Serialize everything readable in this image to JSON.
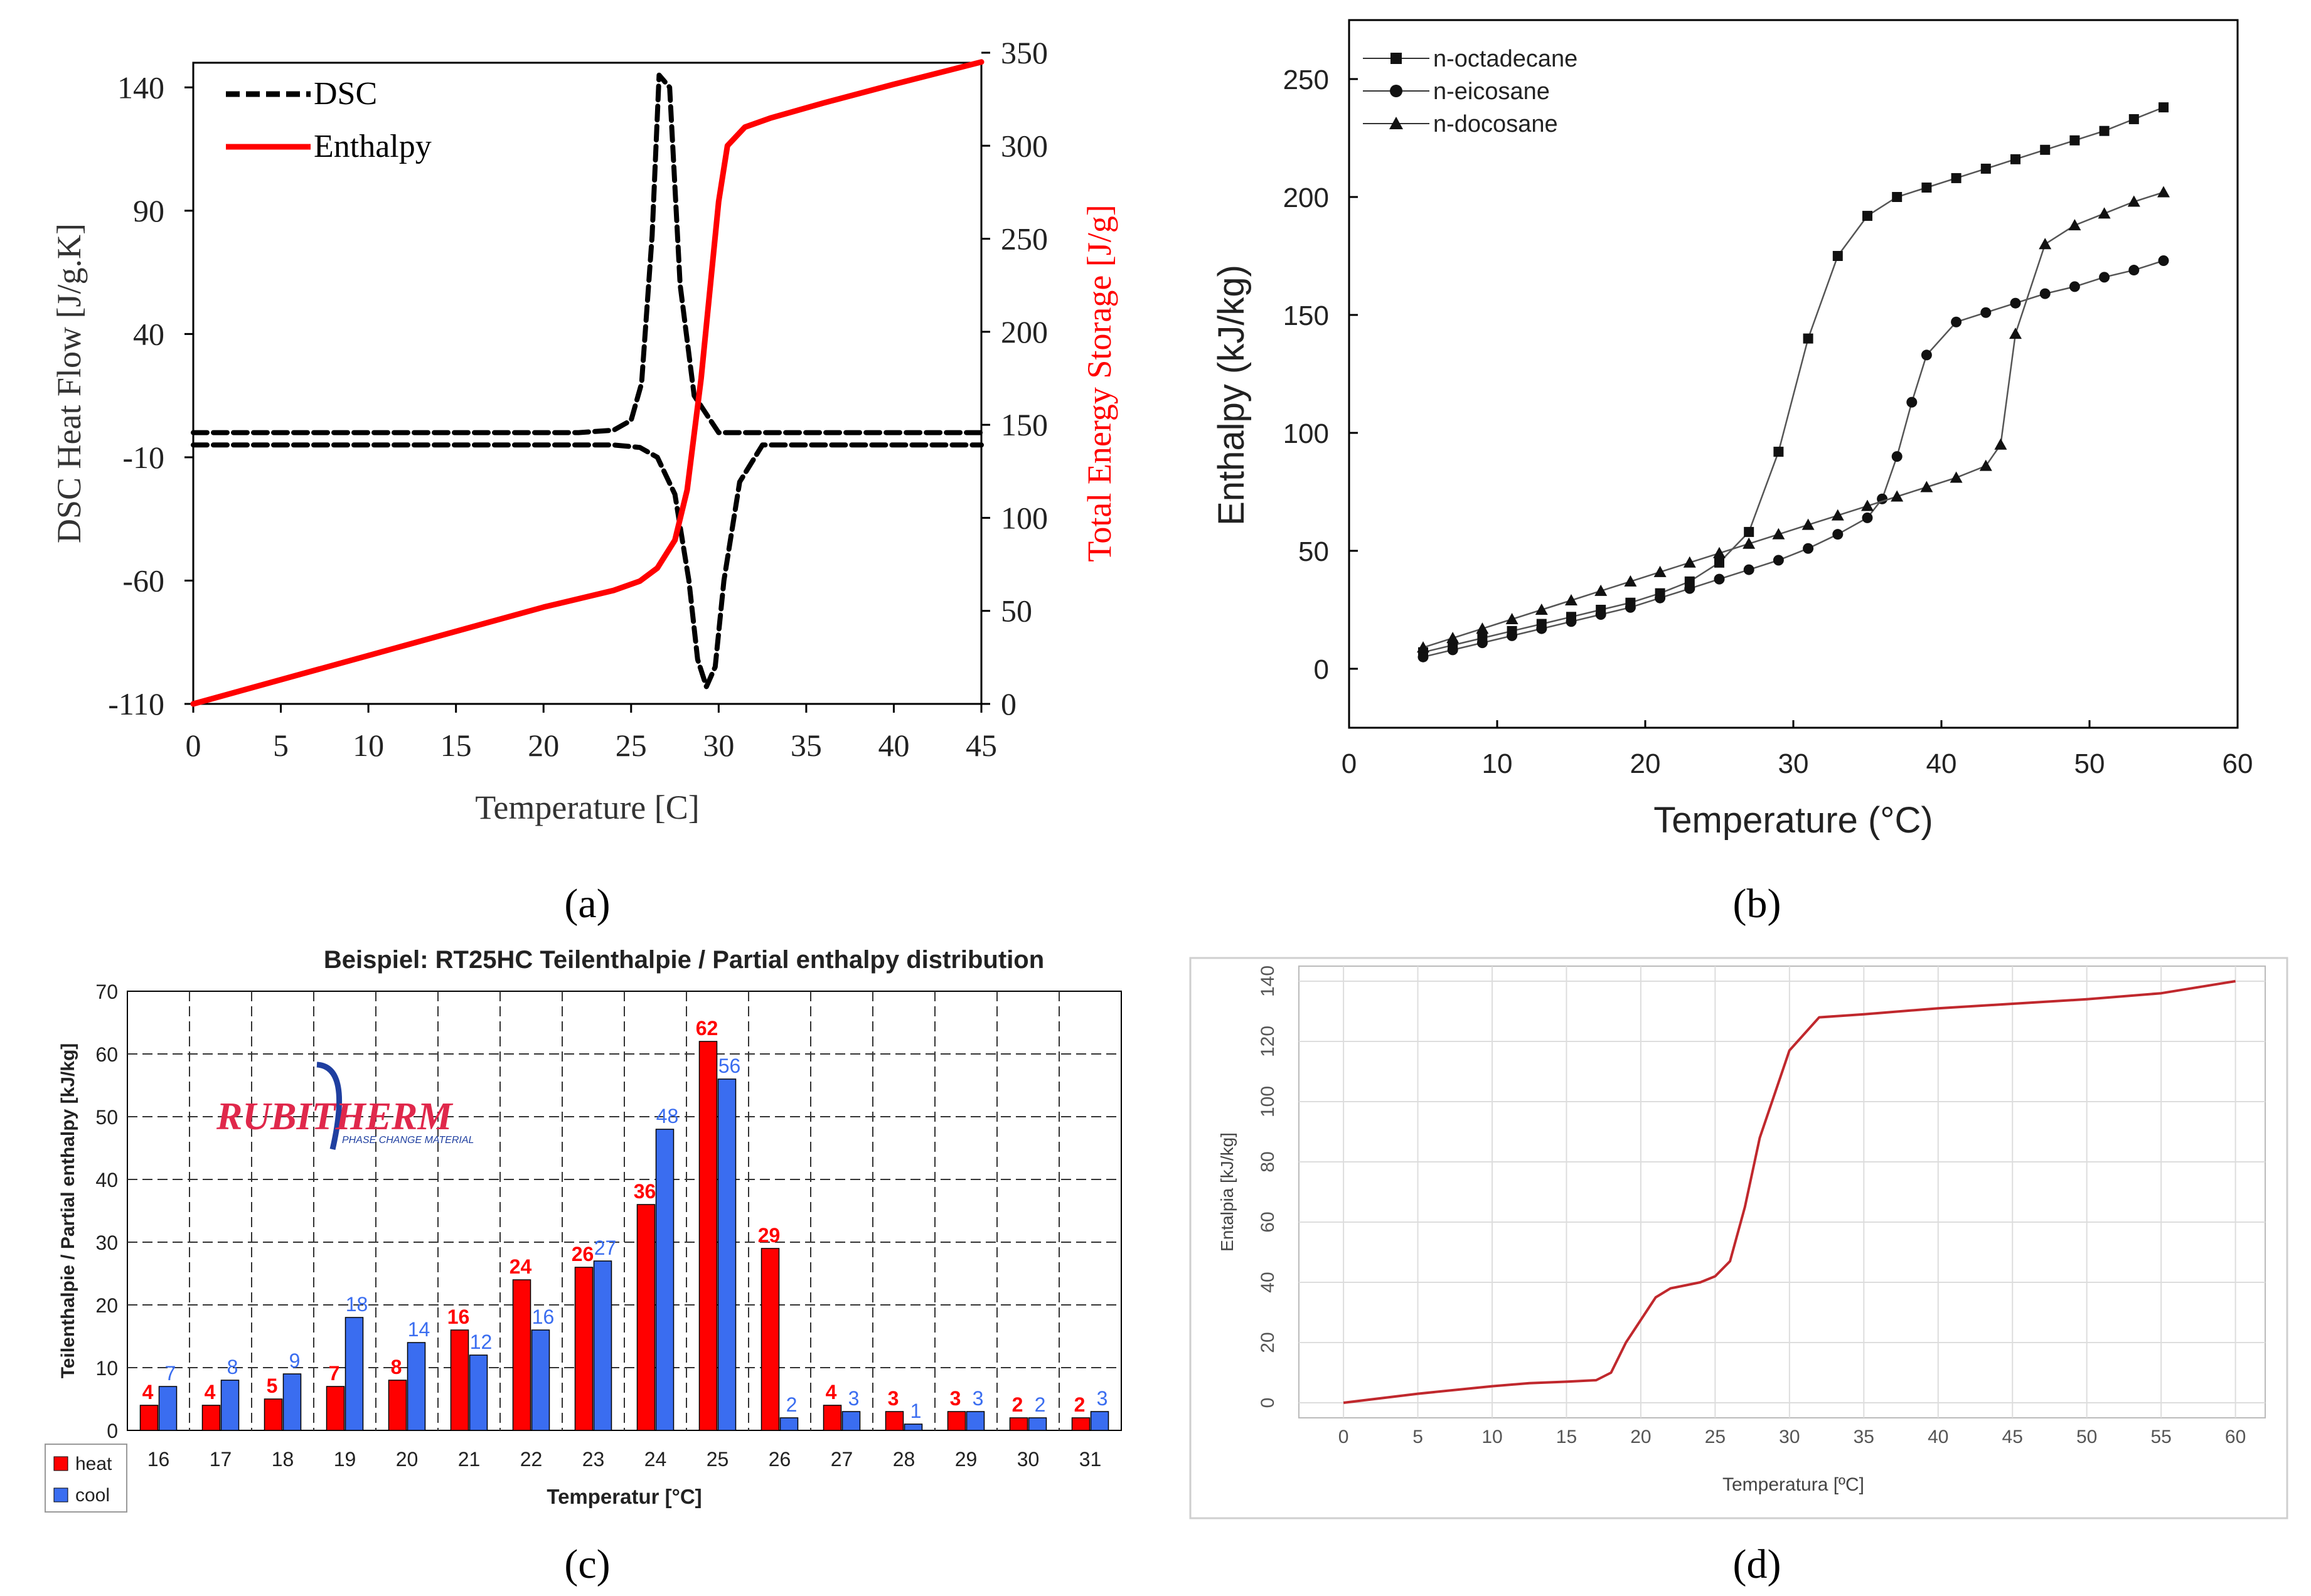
{
  "panel_labels": {
    "a": "(a)",
    "b": "(b)",
    "c": "(c)",
    "d": "(d)"
  },
  "colors": {
    "red": "#ff0000",
    "blue": "#3a6df0",
    "black": "#000000",
    "darkred": "#c0282d",
    "grid": "#dddddd"
  },
  "chart_data": [
    {
      "id": "a",
      "type": "line",
      "title": "",
      "xlabel": "Temperature [C]",
      "ylabel": "DSC Heat Flow [J/g.K]",
      "y2label": "Total Energy Storage [J/g]",
      "xlim": [
        0,
        45
      ],
      "ylim": [
        -110,
        150
      ],
      "y2lim": [
        0,
        350
      ],
      "xticks": [
        "0",
        "5",
        "10",
        "15",
        "20",
        "25",
        "30",
        "35",
        "40",
        "45"
      ],
      "yticks": [
        "140",
        "90",
        "40",
        "-10",
        "-60",
        "-110"
      ],
      "y2ticks": [
        "350",
        "300",
        "250",
        "200",
        "150",
        "100",
        "50",
        "0"
      ],
      "legend": {
        "position": "top-left",
        "entries": [
          "DSC",
          "Enthalpy"
        ]
      },
      "series": [
        {
          "name": "DSC",
          "axis": "left",
          "style": "dashed",
          "x": [
            0,
            22,
            24,
            25,
            25.6,
            26.2,
            26.6,
            27.2,
            27.8,
            28.6,
            30,
            45
          ],
          "y": [
            0,
            0,
            1,
            5,
            20,
            80,
            145,
            140,
            60,
            15,
            0,
            0
          ]
        },
        {
          "name": "DSC cooling",
          "axis": "left",
          "style": "dashed",
          "x": [
            0,
            24,
            25.5,
            26.5,
            27.5,
            28.3,
            28.8,
            29.3,
            29.8,
            30.3,
            31.2,
            32.5,
            45
          ],
          "y": [
            -5,
            -5,
            -6,
            -10,
            -25,
            -60,
            -92,
            -103,
            -95,
            -60,
            -20,
            -5,
            -5
          ]
        },
        {
          "name": "Enthalpy",
          "axis": "right",
          "style": "solid",
          "x": [
            0,
            10,
            20,
            24,
            25.5,
            26.5,
            27.5,
            28.2,
            29,
            30,
            30.5,
            31.5,
            33,
            36,
            40,
            45
          ],
          "y": [
            0,
            26,
            52,
            61,
            66,
            73,
            88,
            115,
            175,
            270,
            300,
            310,
            315,
            323,
            333,
            345
          ]
        }
      ]
    },
    {
      "id": "b",
      "type": "line",
      "title": "",
      "xlabel": "Temperature (°C)",
      "ylabel": "Enthalpy (kJ/kg)",
      "xlim": [
        0,
        60
      ],
      "ylim": [
        -25,
        275
      ],
      "xticks": [
        "0",
        "10",
        "20",
        "30",
        "40",
        "50",
        "60"
      ],
      "yticks": [
        "0",
        "50",
        "100",
        "150",
        "200",
        "250"
      ],
      "legend": {
        "position": "top-left",
        "entries": [
          "n-octadecane",
          "n-eicosane",
          "n-docosane"
        ]
      },
      "series": [
        {
          "name": "n-octadecane",
          "marker": "square",
          "x": [
            5,
            7,
            9,
            11,
            13,
            15,
            17,
            19,
            21,
            23,
            25,
            27,
            29,
            31,
            33,
            35,
            37,
            39,
            41,
            43,
            45,
            47,
            49,
            51,
            53,
            55
          ],
          "y": [
            7,
            10,
            13,
            16,
            19,
            22,
            25,
            28,
            32,
            37,
            45,
            58,
            92,
            140,
            175,
            192,
            200,
            204,
            208,
            212,
            216,
            220,
            224,
            228,
            233,
            238
          ]
        },
        {
          "name": "n-eicosane",
          "marker": "circle",
          "x": [
            5,
            7,
            9,
            11,
            13,
            15,
            17,
            19,
            21,
            23,
            25,
            27,
            29,
            31,
            33,
            35,
            36,
            37,
            38,
            39,
            41,
            43,
            45,
            47,
            49,
            51,
            53,
            55
          ],
          "y": [
            5,
            8,
            11,
            14,
            17,
            20,
            23,
            26,
            30,
            34,
            38,
            42,
            46,
            51,
            57,
            64,
            72,
            90,
            113,
            133,
            147,
            151,
            155,
            159,
            162,
            166,
            169,
            173
          ]
        },
        {
          "name": "n-docosane",
          "marker": "triangle",
          "x": [
            5,
            7,
            9,
            11,
            13,
            15,
            17,
            19,
            21,
            23,
            25,
            27,
            29,
            31,
            33,
            35,
            37,
            39,
            41,
            43,
            44,
            45,
            47,
            49,
            51,
            53,
            55
          ],
          "y": [
            9,
            13,
            17,
            21,
            25,
            29,
            33,
            37,
            41,
            45,
            49,
            53,
            57,
            61,
            65,
            69,
            73,
            77,
            81,
            86,
            95,
            142,
            180,
            188,
            193,
            198,
            202
          ]
        }
      ]
    },
    {
      "id": "c",
      "type": "bar",
      "title": "Beispiel: RT25HC Teilenthalpie / Partial enthalpy distribution",
      "xlabel": "Temperatur [°C]",
      "ylabel": "Teilenthalpie / Partial enthalpy [kJ/kg]",
      "ylim": [
        0,
        70
      ],
      "yticks": [
        "0",
        "10",
        "20",
        "30",
        "40",
        "50",
        "60",
        "70"
      ],
      "categories": [
        "16",
        "17",
        "18",
        "19",
        "20",
        "21",
        "22",
        "23",
        "24",
        "25",
        "26",
        "27",
        "28",
        "29",
        "30",
        "31"
      ],
      "legend": {
        "position": "bottom-left",
        "entries": [
          "heat",
          "cool"
        ]
      },
      "logo": {
        "text": "RUBITHERM",
        "subtext": "PHASE CHANGE MATERIAL"
      },
      "series": [
        {
          "name": "heat",
          "labels": [
            "4",
            "4",
            "5",
            "7",
            "8",
            "16",
            "24",
            "26",
            "36",
            "62",
            "29",
            "4",
            "3",
            "3",
            "2",
            "2"
          ],
          "values": [
            4,
            4,
            5,
            7,
            8,
            16,
            24,
            26,
            36,
            62,
            29,
            4,
            3,
            3,
            2,
            2
          ]
        },
        {
          "name": "cool",
          "labels": [
            "7",
            "8",
            "9",
            "18",
            "14",
            "12",
            "16",
            "27",
            "48",
            "56",
            "2",
            "3",
            "1",
            "3",
            "2",
            "3"
          ],
          "values": [
            7,
            8,
            9,
            18,
            14,
            12,
            16,
            27,
            48,
            56,
            2,
            3,
            1,
            3,
            2,
            3
          ]
        }
      ]
    },
    {
      "id": "d",
      "type": "line",
      "title": "",
      "xlabel": "Temperatura [ºC]",
      "ylabel": "Entalpia [kJ/kg]",
      "xlim": [
        -3,
        62
      ],
      "ylim": [
        -5,
        145
      ],
      "xticks": [
        "0",
        "5",
        "10",
        "15",
        "20",
        "25",
        "30",
        "35",
        "40",
        "45",
        "50",
        "55",
        "60"
      ],
      "yticks": [
        "0",
        "20",
        "40",
        "60",
        "80",
        "100",
        "120",
        "140"
      ],
      "grid": true,
      "series": [
        {
          "name": "Entalpia",
          "x": [
            0,
            5,
            10,
            12.5,
            15,
            17,
            18,
            19,
            21,
            22,
            24,
            25,
            26,
            27,
            28,
            30,
            32,
            35,
            40,
            45,
            50,
            55,
            60
          ],
          "y": [
            0,
            3,
            5.5,
            6.5,
            7,
            7.5,
            10,
            20,
            35,
            38,
            40,
            42,
            47,
            65,
            88,
            117,
            128,
            129,
            131,
            132.5,
            134,
            136,
            140
          ]
        }
      ]
    }
  ]
}
